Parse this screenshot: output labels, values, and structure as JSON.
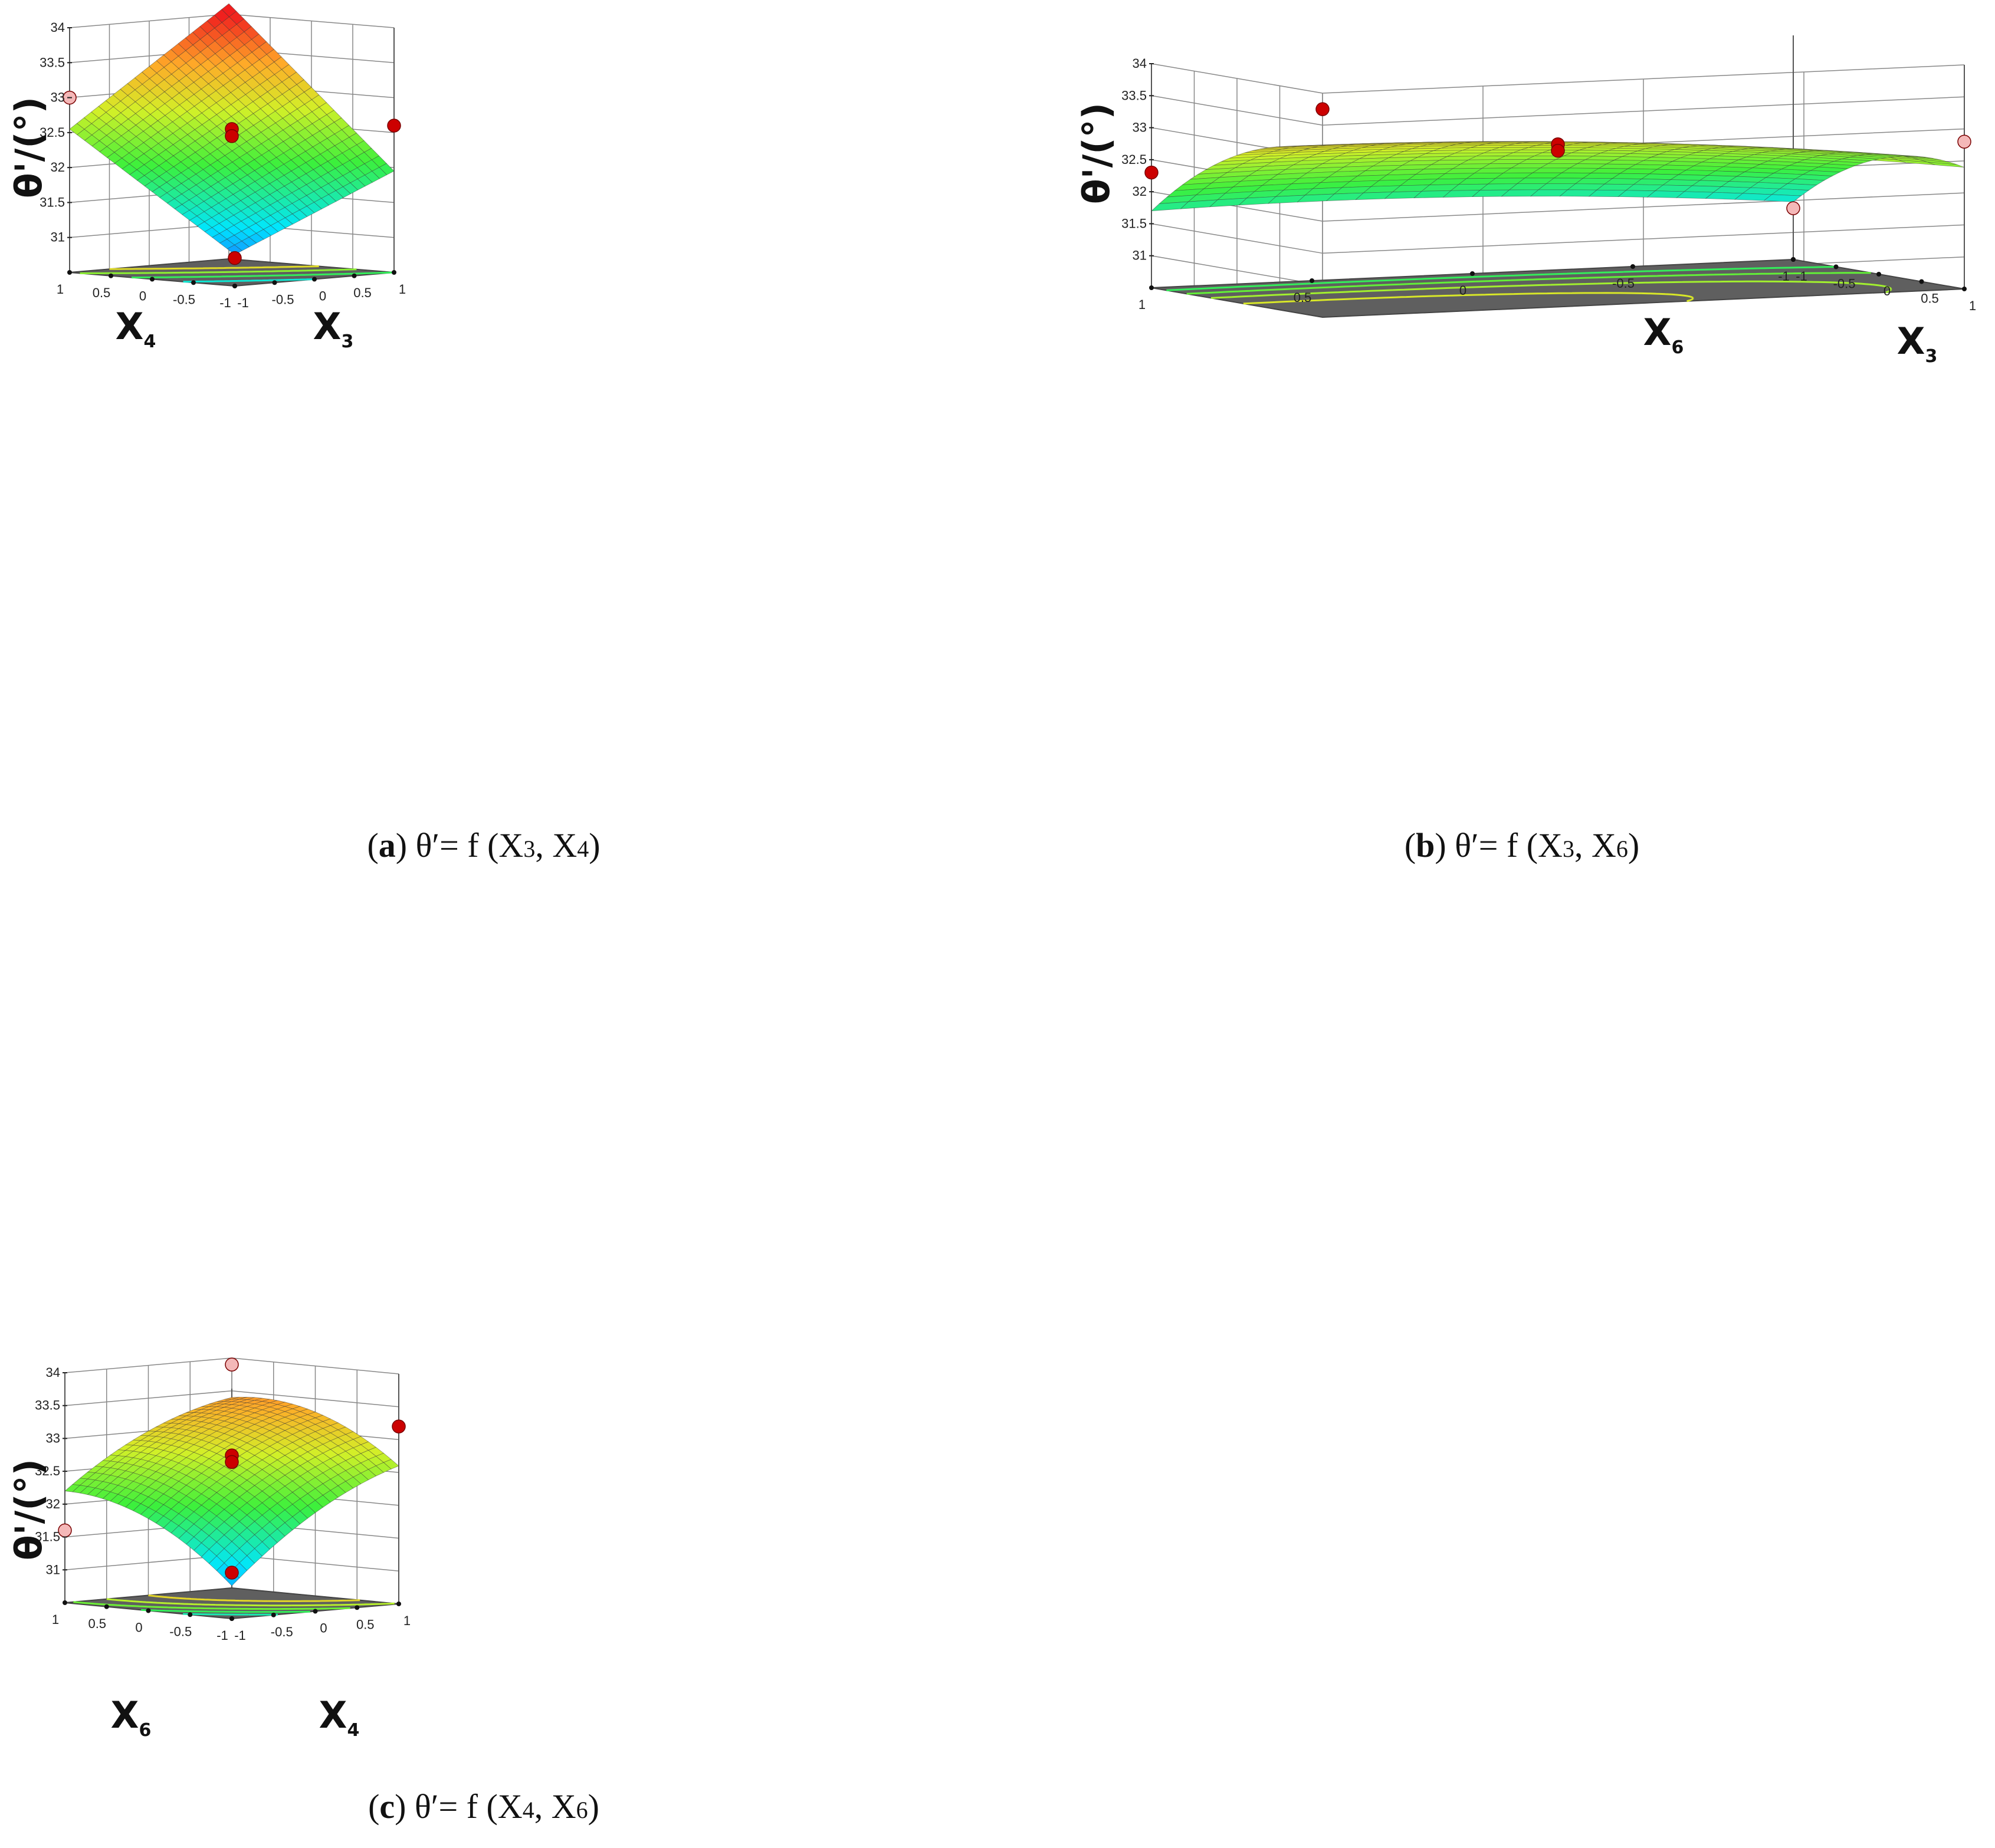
{
  "chart_data": [
    {
      "type": "surface3d",
      "id": "a",
      "caption": {
        "letter": "a",
        "text": "θ′= f (X3, X4)"
      },
      "zlabel": "θ'/(°)",
      "xlabel": "X3",
      "ylabel": "X4",
      "zlim": [
        30.5,
        34
      ],
      "zticks": [
        "31",
        "31.5",
        "32",
        "32.5",
        "33",
        "33.5",
        "34"
      ],
      "xticks": [
        "-1",
        "-0.5",
        "0",
        "0.5",
        "1"
      ],
      "yticks": [
        "-1",
        "-0.5",
        "0",
        "0.5",
        "1"
      ],
      "colors": {
        "floor": "#5f5f5f",
        "point": "#cc0000",
        "point_light": "#f4b8b8"
      },
      "surface": {
        "x_var": "X3",
        "y_var": "X4",
        "b0": 32.4,
        "bx": 0.65,
        "by": 0.95,
        "bxy": 0.15,
        "bxx": 0,
        "byy": 0,
        "zmin": 30.5,
        "zmax": 34
      },
      "contour_levels": [
        30.95,
        31.45,
        31.95,
        32.45,
        32.95
      ],
      "design_points": [
        {
          "x": -1,
          "y": -1,
          "z": 30.9,
          "color": "#cc0000"
        },
        {
          "x": 1,
          "y": -1,
          "z": 32.6,
          "color": "#cc0000"
        },
        {
          "x": -1,
          "y": 1,
          "z": 33.0,
          "color": "#f4b8b8"
        },
        {
          "x": 0,
          "y": 0,
          "z": 32.55,
          "color": "#cc0000"
        },
        {
          "x": 0,
          "y": 0,
          "z": 32.45,
          "color": "#cc0000"
        }
      ]
    },
    {
      "type": "surface3d",
      "id": "b",
      "caption": {
        "letter": "b",
        "text": "θ′= f (X3, X6)"
      },
      "zlabel": "θ'/(°)",
      "xlabel": "X3",
      "ylabel": "X6",
      "zlim": [
        30.5,
        34
      ],
      "zticks": [
        "31",
        "31.5",
        "32",
        "32.5",
        "33",
        "33.5",
        "34"
      ],
      "xticks": [
        "-1",
        "-0.5",
        "0",
        "0.5",
        "1"
      ],
      "yticks": [
        "-1",
        "-0.5",
        "0",
        "0.5",
        "1"
      ],
      "colors": {
        "floor": "#5f5f5f",
        "point": "#cc0000",
        "point_light": "#f4b8b8"
      },
      "surface": {
        "x_var": "X3",
        "y_var": "X6",
        "b0": 32.7,
        "bx": 0.6,
        "by": 0.25,
        "bxy": 0.1,
        "bxx": -0.4,
        "byy": -0.15,
        "zmin": 30.5,
        "zmax": 34
      },
      "contour_levels": [
        31.95,
        32.25,
        32.55,
        32.85
      ],
      "design_points": [
        {
          "x": -1,
          "y": -1,
          "z": 31.3,
          "color": "#f4b8b8"
        },
        {
          "x": 1,
          "y": -1,
          "z": 32.8,
          "color": "#f4b8b8"
        },
        {
          "x": -1,
          "y": 1,
          "z": 32.3,
          "color": "#cc0000"
        },
        {
          "x": 1,
          "y": 1,
          "z": 33.75,
          "color": "#cc0000"
        },
        {
          "x": 0,
          "y": 0,
          "z": 32.75,
          "color": "#cc0000"
        },
        {
          "x": 0,
          "y": 0,
          "z": 32.65,
          "color": "#cc0000"
        }
      ]
    },
    {
      "type": "surface3d",
      "id": "c",
      "caption": {
        "letter": "c",
        "text": "θ′= f (X4, X6)"
      },
      "zlabel": "θ'/(°)",
      "xlabel": "X4",
      "ylabel": "X6",
      "zlim": [
        30.5,
        34
      ],
      "zticks": [
        "31",
        "31.5",
        "32",
        "32.5",
        "33",
        "33.5",
        "34"
      ],
      "xticks": [
        "-1",
        "-0.5",
        "0",
        "0.5",
        "1"
      ],
      "yticks": [
        "-1",
        "-0.5",
        "0",
        "0.5",
        "1"
      ],
      "colors": {
        "floor": "#5f5f5f",
        "point": "#cc0000",
        "point_light": "#f4b8b8"
      },
      "surface": {
        "x_var": "X4",
        "y_var": "X6",
        "b0": 32.8,
        "bx": 0.7,
        "by": 0.5,
        "bxy": -0.1,
        "bxx": -0.2,
        "byy": -0.3,
        "zmin": 30.5,
        "zmax": 34
      },
      "contour_levels": [
        31.6,
        31.95,
        32.3,
        32.65,
        33.0
      ],
      "design_points": [
        {
          "x": -1,
          "y": -1,
          "z": 31.2,
          "color": "#cc0000"
        },
        {
          "x": 1,
          "y": -1,
          "z": 33.2,
          "color": "#cc0000"
        },
        {
          "x": -1,
          "y": 1,
          "z": 31.6,
          "color": "#f4b8b8"
        },
        {
          "x": 1,
          "y": 1,
          "z": 33.9,
          "color": "#f4b8b8"
        },
        {
          "x": 0,
          "y": 0,
          "z": 32.75,
          "color": "#cc0000"
        },
        {
          "x": 0,
          "y": 0,
          "z": 32.65,
          "color": "#cc0000"
        }
      ]
    }
  ]
}
